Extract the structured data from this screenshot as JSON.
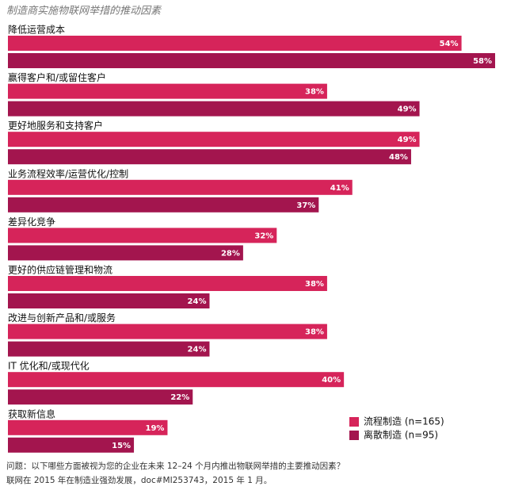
{
  "chart_data": {
    "type": "bar",
    "orientation": "horizontal",
    "title": "制造商实施物联网举措的推动因素",
    "categories": [
      "降低运营成本",
      "赢得客户和/或留住客户",
      "更好地服务和支持客户",
      "业务流程效率/运营优化/控制",
      "差异化竞争",
      "更好的供应链管理和物流",
      "改进与创新产品和/或服务",
      "IT 优化和/或现代化",
      "获取新信息"
    ],
    "series": [
      {
        "name": "流程制造 (n=165)",
        "color": "#d6245a",
        "values": [
          54,
          38,
          49,
          41,
          32,
          38,
          38,
          40,
          19
        ],
        "value_labels": [
          "54%",
          "38%",
          "49%",
          "41%",
          "32%",
          "38%",
          "38%",
          "40%",
          "19%"
        ]
      },
      {
        "name": "离散制造 (n=95)",
        "color": "#a3154e",
        "values": [
          58,
          49,
          48,
          37,
          28,
          24,
          24,
          22,
          15
        ],
        "value_labels": [
          "58%",
          "49%",
          "48%",
          "37%",
          "28%",
          "24%",
          "24%",
          "22%",
          "15%"
        ]
      }
    ],
    "notes": [
      "问题：以下哪些方面被视为您的企业在未来 12–24 个月内推出物联网举措的主要推动因素？",
      "联网在 2015 年在制造业强劲发展，doc#MI253743，2015 年 1 月。"
    ]
  }
}
